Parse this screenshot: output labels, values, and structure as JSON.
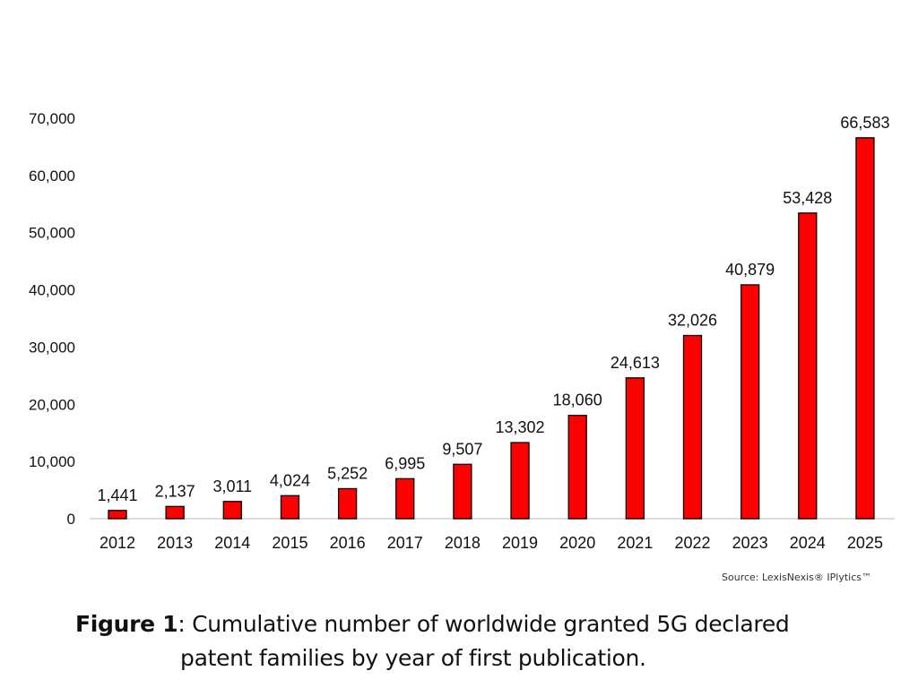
{
  "chart_data": {
    "type": "bar",
    "title": "",
    "xlabel": "",
    "ylabel": "",
    "categories": [
      "2012",
      "2013",
      "2014",
      "2015",
      "2016",
      "2017",
      "2018",
      "2019",
      "2020",
      "2021",
      "2022",
      "2023",
      "2024",
      "2025"
    ],
    "values": [
      1441,
      2137,
      3011,
      4024,
      5252,
      6995,
      9507,
      13302,
      18060,
      24613,
      32026,
      40879,
      53428,
      66583
    ],
    "data_labels": [
      "1,441",
      "2,137",
      "3,011",
      "4,024",
      "5,252",
      "6,995",
      "9,507",
      "13,302",
      "18,060",
      "24,613",
      "32,026",
      "40,879",
      "53,428",
      "66,583"
    ],
    "ylim": [
      0,
      70000
    ],
    "yticks": [
      0,
      10000,
      20000,
      30000,
      40000,
      50000,
      60000,
      70000
    ],
    "ytick_labels": [
      "0",
      "10,000",
      "20,000",
      "30,000",
      "40,000",
      "50,000",
      "60,000",
      "70,000"
    ],
    "grid": false,
    "bar_color": "#ff0000",
    "bar_edge_color": "#000000"
  },
  "source": "Source: LexisNexis® IPlytics™",
  "caption": {
    "label": "Figure 1",
    "line1": ": Cumulative number of worldwide granted 5G declared",
    "line2": "patent families by year of first publication."
  }
}
